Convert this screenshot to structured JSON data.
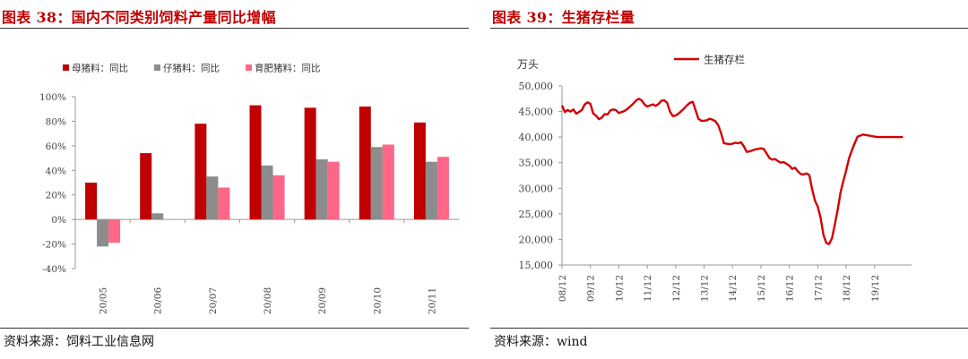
{
  "left": {
    "title": "图表 38：国内不同类别饲料产量同比增幅",
    "source": "资料来源：饲料工业信息网",
    "chart_data": {
      "type": "bar",
      "categories": [
        "20/05",
        "20/06",
        "20/07",
        "20/08",
        "20/09",
        "20/10",
        "20/11"
      ],
      "series": [
        {
          "name": "母猪料：同比",
          "color": "#c00000",
          "values": [
            30,
            54,
            78,
            93,
            91,
            92,
            79
          ]
        },
        {
          "name": "仔猪料：同比",
          "color": "#8c8c8c",
          "values": [
            -22,
            5,
            35,
            44,
            49,
            59,
            47
          ]
        },
        {
          "name": "育肥猪料：同比",
          "color": "#ff6688",
          "values": [
            -19,
            null,
            26,
            36,
            47,
            61,
            51
          ]
        }
      ],
      "yticks": [
        "100%",
        "80%",
        "60%",
        "40%",
        "20%",
        "0%",
        "-20%",
        "-40%"
      ],
      "ylim": [
        -40,
        100
      ],
      "legend_position": "top-left"
    }
  },
  "right": {
    "title": "图表 39：生猪存栏量",
    "source": "资料来源：wind",
    "chart_data": {
      "type": "line",
      "ylabel": "万头",
      "ylim": [
        15000,
        50000
      ],
      "yticks": [
        "50,000",
        "45,000",
        "40,000",
        "35,000",
        "30,000",
        "25,000",
        "20,000",
        "15,000"
      ],
      "xticks": [
        "08/12",
        "09/12",
        "10/12",
        "11/12",
        "12/12",
        "13/12",
        "14/12",
        "15/12",
        "16/12",
        "17/12",
        "18/12",
        "19/12"
      ],
      "legend_position": "top-center",
      "series": [
        {
          "name": "生猪存栏",
          "color": "#d40000",
          "x": [
            0,
            0.1,
            0.2,
            0.3,
            0.4,
            0.5,
            0.6,
            0.7,
            0.8,
            0.9,
            1.0,
            1.1,
            1.2,
            1.3,
            1.4,
            1.5,
            1.6,
            1.7,
            1.8,
            1.9,
            2.0,
            2.1,
            2.2,
            2.3,
            2.4,
            2.5,
            2.6,
            2.7,
            2.8,
            2.9,
            3.0,
            3.1,
            3.2,
            3.3,
            3.4,
            3.5,
            3.6,
            3.7,
            3.8,
            3.9,
            4.0,
            4.1,
            4.2,
            4.3,
            4.4,
            4.5,
            4.6,
            4.7,
            4.8,
            4.9,
            5.0,
            5.1,
            5.2,
            5.3,
            5.4,
            5.5,
            5.6,
            5.7,
            5.8,
            5.9,
            6.0,
            6.1,
            6.2,
            6.3,
            6.4,
            6.5,
            6.6,
            6.7,
            6.8,
            6.9,
            7.0,
            7.1,
            7.2,
            7.3,
            7.4,
            7.5,
            7.6,
            7.7,
            7.8,
            7.9,
            8.0,
            8.1,
            8.2,
            8.3,
            8.4,
            8.5,
            8.6,
            8.7,
            8.8,
            8.9,
            9.0,
            9.1,
            9.2,
            9.3,
            9.4,
            9.5,
            9.6,
            9.7,
            9.8,
            9.9,
            10.0,
            10.1,
            10.2,
            10.3,
            10.4,
            10.5,
            10.6,
            10.7,
            10.8,
            10.9,
            11.0,
            11.1,
            11.2,
            11.3,
            11.4,
            11.5,
            11.6,
            11.7,
            11.8,
            11.9,
            12.0
          ],
          "values": [
            46200,
            44900,
            45300,
            45000,
            45400,
            44600,
            44900,
            45300,
            46400,
            46800,
            46500,
            44600,
            44200,
            43500,
            43800,
            44500,
            44400,
            45200,
            45400,
            45300,
            44700,
            44900,
            45100,
            45500,
            46000,
            46500,
            47100,
            47500,
            47200,
            46400,
            46000,
            46200,
            46400,
            46100,
            46500,
            47100,
            47200,
            46700,
            45000,
            44100,
            44200,
            44600,
            45100,
            45600,
            46200,
            46700,
            46900,
            45300,
            43600,
            43200,
            43200,
            43300,
            43600,
            43400,
            43100,
            42300,
            40700,
            38800,
            38700,
            38600,
            38700,
            38900,
            38800,
            39000,
            38200,
            37100,
            37200,
            37400,
            37600,
            37700,
            37800,
            37700,
            36800,
            35900,
            35600,
            35700,
            35300,
            35000,
            35100,
            34800,
            34400,
            33800,
            34000,
            33300,
            32800,
            32700,
            32900,
            32600,
            29900,
            27600,
            26400,
            24300,
            20900,
            19300,
            19100,
            20200,
            22900,
            25800,
            29100,
            31400,
            33500,
            35800,
            37400,
            38800,
            40100,
            40300,
            40500,
            40400,
            40300,
            40200,
            40100,
            40000,
            40000,
            40000,
            40000,
            40000,
            40000,
            40000,
            40000,
            40000,
            40000
          ]
        }
      ]
    }
  }
}
